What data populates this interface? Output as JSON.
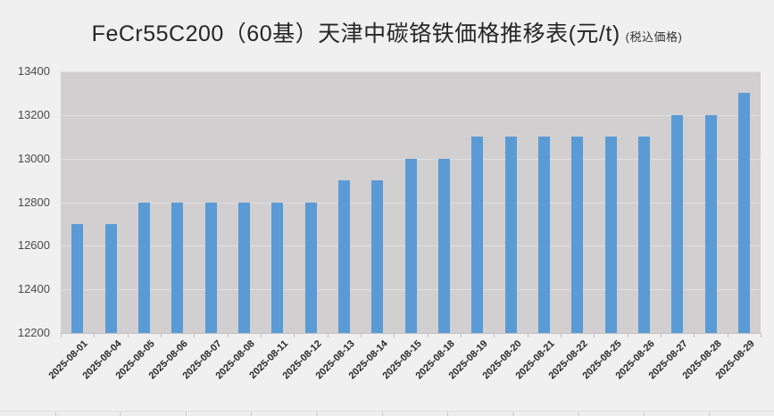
{
  "title": {
    "main": "FeCr55C200（60基）天津中碳铬铁価格推移表(元/t)",
    "note": "(税込価格)"
  },
  "chart_data": {
    "type": "bar",
    "title": "FeCr55C200（60基）天津中碳铬铁価格推移表(元/t)",
    "subtitle": "(税込価格)",
    "categories": [
      "2025-08-01",
      "2025-08-04",
      "2025-08-05",
      "2025-08-06",
      "2025-08-07",
      "2025-08-08",
      "2025-08-11",
      "2025-08-12",
      "2025-08-13",
      "2025-08-14",
      "2025-08-15",
      "2025-08-18",
      "2025-08-19",
      "2025-08-20",
      "2025-08-21",
      "2025-08-22",
      "2025-08-25",
      "2025-08-26",
      "2025-08-27",
      "2025-08-28",
      "2025-08-29"
    ],
    "values": [
      12700,
      12700,
      12800,
      12800,
      12800,
      12800,
      12800,
      12800,
      12900,
      12900,
      13000,
      13000,
      13100,
      13100,
      13100,
      13100,
      13100,
      13100,
      13200,
      13200,
      13300
    ],
    "xlabel": "",
    "ylabel": "",
    "ylim": [
      12200,
      13400
    ],
    "y_ticks": [
      13400,
      13200,
      13000,
      12800,
      12600,
      12400,
      12200
    ],
    "grid": true,
    "legend": "none",
    "bar_color": "#5b9bd5",
    "plot_bg": "#d1cfcf",
    "page_bg": "#f1f0f0"
  }
}
